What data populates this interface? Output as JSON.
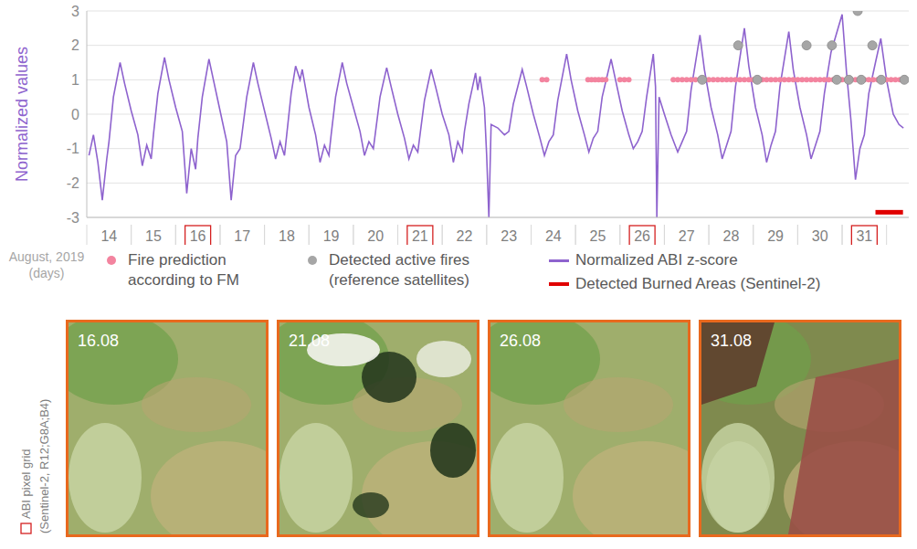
{
  "chart_data": {
    "type": "line",
    "y_label": "Normalized values",
    "x_label": "August, 2019 (days)",
    "xlim": [
      13.5,
      32
    ],
    "xticks": [
      14,
      15,
      16,
      17,
      18,
      19,
      20,
      21,
      22,
      23,
      24,
      25,
      26,
      27,
      28,
      29,
      30,
      31
    ],
    "ylim": [
      -3,
      3
    ],
    "yticks": [
      -3,
      -2,
      -1,
      0,
      1,
      2,
      3
    ],
    "grid": true,
    "legend": "bottom",
    "highlighted_x": [
      16,
      21,
      26,
      31
    ],
    "series": [
      {
        "name": "Normalized ABI z-score",
        "type": "line",
        "color": "#8e63ce",
        "line_style": "solid",
        "x": [
          13.55,
          13.65,
          13.75,
          13.85,
          13.95,
          14,
          14.1,
          14.25,
          14.35,
          14.5,
          14.65,
          14.75,
          14.85,
          14.95,
          15,
          15.1,
          15.25,
          15.35,
          15.5,
          15.65,
          15.75,
          15.85,
          15.95,
          16,
          16.1,
          16.25,
          16.35,
          16.5,
          16.65,
          16.75,
          16.85,
          16.95,
          17,
          17.1,
          17.25,
          17.35,
          17.5,
          17.65,
          17.75,
          17.85,
          17.95,
          18,
          18.1,
          18.2,
          18.3,
          18.35,
          18.5,
          18.65,
          18.75,
          18.85,
          18.95,
          19,
          19.1,
          19.25,
          19.35,
          19.5,
          19.65,
          19.75,
          19.85,
          19.95,
          20,
          20.1,
          20.25,
          20.35,
          20.5,
          20.65,
          20.75,
          20.85,
          20.95,
          21,
          21.1,
          21.25,
          21.35,
          21.5,
          21.65,
          21.75,
          21.85,
          21.95,
          22,
          22.1,
          22.25,
          22.3,
          22.35,
          22.45,
          22.5,
          22.55,
          22.6,
          22.75,
          22.9,
          23,
          23.1,
          23.3,
          23.4,
          23.55,
          23.7,
          23.8,
          23.9,
          24,
          24.1,
          24.3,
          24.4,
          24.55,
          24.7,
          24.8,
          24.9,
          25,
          25.1,
          25.3,
          25.4,
          25.55,
          25.7,
          25.8,
          25.9,
          26,
          26.1,
          26.25,
          26.3,
          26.33,
          26.38,
          26.5,
          26.65,
          26.8,
          26.9,
          27,
          27.1,
          27.3,
          27.4,
          27.55,
          27.7,
          27.8,
          27.9,
          28,
          28.1,
          28.3,
          28.4,
          28.55,
          28.7,
          28.8,
          28.9,
          29,
          29.1,
          29.3,
          29.4,
          29.55,
          29.7,
          29.8,
          29.9,
          30,
          30.1,
          30.25,
          30.5,
          30.6,
          30.7,
          30.8,
          30.9,
          31,
          31.1,
          31.25,
          31.37,
          31.5,
          31.65,
          31.78,
          31.88
        ],
        "values": [
          -1.2,
          -0.6,
          -1.4,
          -2.5,
          -1.3,
          -0.8,
          0.5,
          1.5,
          0.9,
          0.1,
          -0.6,
          -1.5,
          -0.9,
          -1.3,
          -0.6,
          0.6,
          1.65,
          1,
          0.2,
          -0.5,
          -2.3,
          -1,
          -1.6,
          -0.7,
          0.5,
          1.6,
          1,
          0.1,
          -0.8,
          -2.5,
          -1.2,
          -1,
          -0.5,
          0.5,
          1.5,
          0.9,
          0.1,
          -0.7,
          -1.3,
          -0.8,
          -1.2,
          -0.6,
          0.6,
          1.4,
          1,
          1.3,
          0.2,
          -0.6,
          -1.4,
          -0.9,
          -1.2,
          -0.6,
          0.5,
          1.5,
          0.9,
          0.2,
          -0.5,
          -1.2,
          -0.8,
          -1,
          -0.5,
          0.5,
          1.35,
          0.8,
          0,
          -0.7,
          -1.3,
          -0.9,
          -1.1,
          -0.6,
          0.4,
          1.3,
          0.8,
          0,
          -0.6,
          -1.4,
          -0.8,
          -1.1,
          -0.5,
          0.3,
          1.2,
          0.7,
          1.1,
          0.2,
          -1.2,
          -3,
          -0.3,
          -0.4,
          -0.6,
          -0.5,
          0.3,
          1.3,
          0.8,
          0,
          -0.7,
          -1.2,
          -0.8,
          -0.6,
          0.4,
          1.75,
          1,
          0.1,
          -0.6,
          -1.1,
          -0.7,
          -0.5,
          0.5,
          1.6,
          1,
          0.1,
          -0.6,
          -1,
          -0.8,
          -0.5,
          0.5,
          1.75,
          0.8,
          -3,
          0.5,
          0,
          -0.6,
          -1.1,
          -0.8,
          -0.5,
          0.7,
          2.3,
          1.3,
          0.2,
          -0.6,
          -1.3,
          -0.9,
          -0.5,
          0.8,
          2.5,
          1.4,
          0.2,
          -0.6,
          -1.4,
          -0.9,
          -0.5,
          0.8,
          2.4,
          1.3,
          0.2,
          -0.6,
          -1.3,
          -0.9,
          -0.5,
          0.6,
          1.8,
          2.9,
          1.2,
          -0.2,
          -1.9,
          -1,
          -0.6,
          0.6,
          1.5,
          2.2,
          1,
          0,
          -0.3,
          -0.4
        ]
      },
      {
        "name": "Fire prediction according to FM",
        "type": "scatter",
        "color": "#f3849f",
        "marker": "circle",
        "x": [
          23.75,
          23.85,
          24.78,
          24.86,
          24.94,
          25.02,
          25.1,
          25.18,
          25.5,
          25.6,
          25.7,
          26.7,
          26.8,
          26.9,
          27,
          27.1,
          27.2,
          27.3,
          27.4,
          27.5,
          27.6,
          27.7,
          27.8,
          27.9,
          28,
          28.1,
          28.2,
          28.3,
          28.4,
          28.5,
          28.6,
          28.7,
          28.8,
          28.9,
          29,
          29.1,
          29.2,
          29.3,
          29.4,
          29.5,
          29.6,
          29.7,
          29.8,
          29.9,
          30,
          30.1,
          30.2,
          30.3,
          30.4,
          30.5,
          30.6,
          30.7,
          30.8,
          30.9,
          31,
          31.1,
          31.2,
          31.3,
          31.4,
          31.5,
          31.6,
          31.7,
          31.8,
          31.9
        ],
        "values": [
          1,
          1,
          1,
          1,
          1,
          1,
          1,
          1,
          1,
          1,
          1,
          1,
          1,
          1,
          1,
          1,
          1,
          1,
          1,
          1,
          1,
          1,
          1,
          1,
          1,
          1,
          1,
          1,
          1,
          1,
          1,
          1,
          1,
          1,
          1,
          1,
          1,
          1,
          1,
          1,
          1,
          1,
          1,
          1,
          1,
          1,
          1,
          1,
          1,
          1,
          1,
          1,
          1,
          1,
          1,
          1,
          1,
          1,
          1,
          1,
          1,
          1,
          1,
          1
        ]
      },
      {
        "name": "Detected active fires (reference satellites)",
        "type": "scatter",
        "color": "#a6a6a6",
        "marker": "circle",
        "x": [
          27.35,
          28.16,
          28.59,
          29.7,
          30.27,
          30.38,
          30.65,
          30.85,
          30.93,
          31.18,
          31.38,
          31.9
        ],
        "values": [
          1,
          2,
          1,
          2,
          2,
          1,
          1,
          3,
          1,
          2,
          1,
          1
        ]
      },
      {
        "name": "Detected Burned Areas (Sentinel-2)",
        "type": "line",
        "color": "#e00000",
        "line_style": "solid",
        "x": [
          31.25,
          31.87
        ],
        "values": [
          -2.85,
          -2.85
        ]
      }
    ]
  },
  "image_panels": {
    "title": "ABI pixel grid",
    "subtitle": "(Sentinel-2, R12;G8A;B4)",
    "labels": [
      "16.08",
      "21.08",
      "26.08",
      "31.08"
    ]
  }
}
